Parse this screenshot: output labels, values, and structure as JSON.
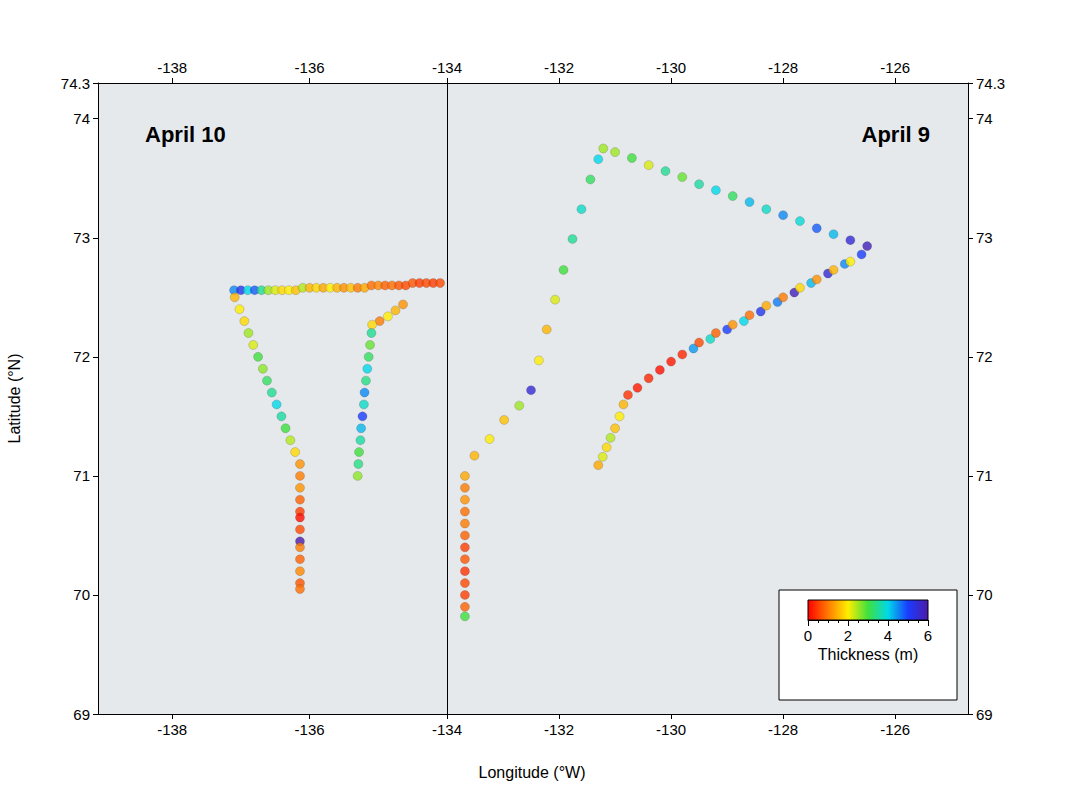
{
  "chart_data": [
    {
      "type": "scatter",
      "title": "April 10",
      "x_label": "Longitude (°W)",
      "y_label": "Latitude (°N)",
      "xlim": [
        -139.08,
        -134
      ],
      "xticks": [
        -138,
        -136,
        -134
      ],
      "ylim": [
        69,
        74.3
      ],
      "yticks": [
        69,
        70,
        71,
        72,
        73,
        74
      ],
      "x": [
        -137.1,
        -137.0,
        -136.9,
        -136.8,
        -136.7,
        -136.6,
        -136.5,
        -136.4,
        -136.3,
        -136.2,
        -136.1,
        -136.0,
        -135.9,
        -135.8,
        -135.7,
        -135.6,
        -135.5,
        -135.4,
        -135.3,
        -135.2,
        -135.1,
        -135.0,
        -134.9,
        -134.8,
        -134.7,
        -134.6,
        -134.5,
        -134.4,
        -134.3,
        -134.2,
        -134.1,
        -137.09,
        -137.02,
        -136.95,
        -136.89,
        -136.82,
        -136.75,
        -136.68,
        -136.62,
        -136.55,
        -136.48,
        -136.41,
        -136.35,
        -136.28,
        -136.21,
        -136.14,
        -136.14,
        -136.14,
        -136.14,
        -136.14,
        -136.14,
        -136.14,
        -136.14,
        -136.14,
        -136.14,
        -136.14,
        -136.14,
        -136.14,
        -134.64,
        -134.75,
        -134.86,
        -134.98,
        -135.09,
        -135.1,
        -135.12,
        -135.14,
        -135.16,
        -135.18,
        -135.2,
        -135.21,
        -135.23,
        -135.25,
        -135.26,
        -135.28,
        -135.29,
        -135.3
      ],
      "y": [
        72.56,
        72.56,
        72.56,
        72.56,
        72.56,
        72.56,
        72.56,
        72.56,
        72.56,
        72.56,
        72.58,
        72.58,
        72.58,
        72.58,
        72.58,
        72.58,
        72.58,
        72.58,
        72.58,
        72.58,
        72.6,
        72.6,
        72.6,
        72.6,
        72.6,
        72.6,
        72.62,
        72.62,
        72.62,
        72.62,
        72.62,
        72.5,
        72.4,
        72.3,
        72.2,
        72.1,
        72.0,
        71.9,
        71.8,
        71.7,
        71.6,
        71.5,
        71.4,
        71.3,
        71.2,
        71.1,
        71.0,
        70.9,
        70.8,
        70.7,
        70.65,
        70.55,
        70.45,
        70.4,
        70.3,
        70.2,
        70.1,
        70.05,
        72.44,
        72.39,
        72.34,
        72.3,
        72.27,
        72.2,
        72.1,
        72.0,
        71.9,
        71.8,
        71.7,
        71.6,
        71.5,
        71.4,
        71.3,
        71.2,
        71.1,
        71.0
      ],
      "thickness": [
        4.5,
        5.2,
        4.0,
        4.8,
        3.5,
        2.5,
        2.2,
        1.8,
        2.0,
        1.6,
        2.4,
        1.5,
        1.8,
        1.4,
        2.0,
        1.5,
        1.2,
        1.6,
        1.0,
        1.4,
        0.9,
        1.1,
        0.8,
        0.9,
        0.7,
        0.6,
        0.7,
        0.5,
        0.6,
        0.5,
        0.6,
        1.5,
        2.0,
        1.8,
        2.5,
        2.2,
        3.0,
        2.6,
        3.2,
        3.5,
        4.0,
        3.6,
        3.0,
        2.4,
        1.8,
        1.2,
        1.0,
        1.2,
        0.8,
        0.5,
        0.1,
        0.6,
        6.0,
        1.0,
        0.8,
        1.1,
        0.7,
        0.9,
        1.2,
        1.5,
        2.0,
        1.0,
        1.8,
        3.5,
        2.8,
        3.2,
        4.0,
        3.4,
        4.5,
        3.8,
        5.0,
        4.2,
        3.6,
        3.0,
        3.4,
        2.6
      ]
    },
    {
      "type": "scatter",
      "title": "April 9",
      "xlim": [
        -134,
        -124.7
      ],
      "xticks": [
        -132,
        -130,
        -128,
        -126
      ],
      "ylim": [
        69,
        74.3
      ],
      "yticks": [
        69,
        70,
        71,
        72,
        73,
        74
      ],
      "x": [
        -133.68,
        -133.68,
        -133.68,
        -133.68,
        -133.68,
        -133.68,
        -133.68,
        -133.68,
        -133.68,
        -133.68,
        -133.68,
        -133.68,
        -133.68,
        -133.51,
        -133.24,
        -132.98,
        -132.71,
        -132.5,
        -132.36,
        -132.22,
        -132.07,
        -131.92,
        -131.76,
        -131.6,
        -131.44,
        -131.3,
        -131.21,
        -131.0,
        -130.7,
        -130.4,
        -130.1,
        -129.8,
        -129.5,
        -129.2,
        -128.9,
        -128.6,
        -128.3,
        -128.0,
        -127.7,
        -127.4,
        -127.1,
        -126.8,
        -126.5,
        -126.6,
        -126.9,
        -127.2,
        -127.5,
        -127.8,
        -128.1,
        -128.4,
        -128.7,
        -129.0,
        -129.3,
        -129.6,
        -126.8,
        -127.1,
        -127.4,
        -127.7,
        -128.0,
        -128.3,
        -128.6,
        -128.9,
        -129.2,
        -129.5,
        -129.8,
        -130.0,
        -130.2,
        -130.4,
        -130.6,
        -130.77,
        -130.85,
        -130.92,
        -131.0,
        -131.08,
        -131.15,
        -131.22,
        -131.3
      ],
      "y": [
        69.82,
        69.9,
        70.0,
        70.1,
        70.2,
        70.3,
        70.4,
        70.5,
        70.6,
        70.7,
        70.8,
        70.9,
        71.0,
        71.17,
        71.31,
        71.47,
        71.59,
        71.72,
        71.97,
        72.23,
        72.48,
        72.73,
        72.99,
        73.24,
        73.49,
        73.66,
        73.75,
        73.72,
        73.67,
        73.61,
        73.56,
        73.51,
        73.45,
        73.4,
        73.35,
        73.3,
        73.24,
        73.19,
        73.14,
        73.08,
        73.03,
        72.98,
        72.93,
        72.86,
        72.78,
        72.7,
        72.62,
        72.54,
        72.46,
        72.38,
        72.3,
        72.23,
        72.15,
        72.07,
        72.8,
        72.73,
        72.65,
        72.58,
        72.5,
        72.43,
        72.35,
        72.27,
        72.2,
        72.12,
        72.02,
        71.96,
        71.89,
        71.82,
        71.74,
        71.68,
        71.6,
        71.5,
        71.4,
        71.32,
        71.24,
        71.16,
        71.09
      ],
      "thickness": [
        3.0,
        0.8,
        0.5,
        0.6,
        0.4,
        0.7,
        0.5,
        0.8,
        1.0,
        0.9,
        1.2,
        1.0,
        1.4,
        1.5,
        2.0,
        1.6,
        2.5,
        5.5,
        2.0,
        1.5,
        2.2,
        3.0,
        3.5,
        3.8,
        3.2,
        4.0,
        2.5,
        2.5,
        3.0,
        2.2,
        3.5,
        2.8,
        3.6,
        4.0,
        3.2,
        4.2,
        3.8,
        4.5,
        3.9,
        4.8,
        4.2,
        5.5,
        5.8,
        5.0,
        4.5,
        5.5,
        4.2,
        5.8,
        4.6,
        5.2,
        4.0,
        5.0,
        3.8,
        4.4,
        2.0,
        1.5,
        1.2,
        1.8,
        1.0,
        1.4,
        0.9,
        1.2,
        0.8,
        0.6,
        0.3,
        0.2,
        0.1,
        0.3,
        0.2,
        0.4,
        1.5,
        2.0,
        1.6,
        2.4,
        1.8,
        2.2,
        1.4
      ],
      "colorbar": {
        "label": "Thickness (m)",
        "range": [
          0,
          6
        ],
        "ticks": [
          0,
          2,
          4,
          6
        ]
      }
    }
  ]
}
